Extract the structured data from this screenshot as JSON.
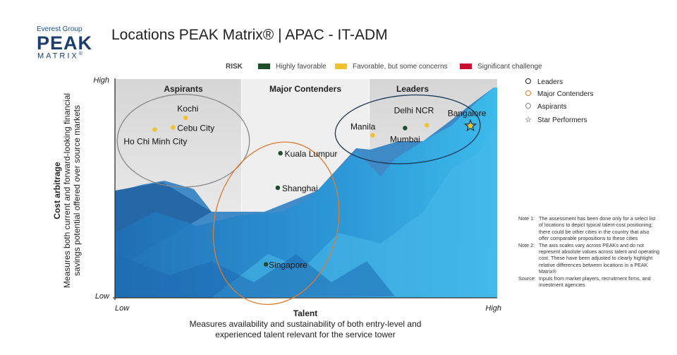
{
  "logo": {
    "group": "Everest Group",
    "peak": "PEAK",
    "matrix": "MATRIX",
    "reg": "®"
  },
  "title": "Locations PEAK Matrix® | APAC - IT-ADM",
  "risk": {
    "label": "RISK",
    "items": [
      {
        "label": "Highly favorable",
        "color": "#1e4d2b"
      },
      {
        "label": "Favorable, but some concerns",
        "color": "#f2c12e"
      },
      {
        "label": "Significant challenge",
        "color": "#c8102e"
      }
    ]
  },
  "legend": [
    {
      "label": "Leaders",
      "symbol": "circle",
      "color": "#222222"
    },
    {
      "label": "Major Contenders",
      "symbol": "circle",
      "color": "#e07a2e"
    },
    {
      "label": "Aspirants",
      "symbol": "circle",
      "color": "#888888"
    },
    {
      "label": "Star Performers",
      "symbol": "star",
      "color": "#222222"
    }
  ],
  "notes": [
    {
      "label": "Note 1:",
      "text": "The assessment has been done only for a select list of locations to depict typical talent-cost positioning; there could be other cities in the country that also offer comparable propositions to these cities"
    },
    {
      "label": "Note 2:",
      "text": "The axis scales vary across PEAKs and do not represent absolute values across talent and operating cost. These have been adjusted to clearly highlight relative differences between locations in a PEAK Matrix®"
    },
    {
      "label": "Source:",
      "text": "Inputs from market players, recruitment firms, and investment agencies"
    }
  ],
  "chart_data": {
    "type": "scatter",
    "title": "Locations PEAK Matrix® | APAC - IT-ADM",
    "xlabel": "Talent",
    "xlabel_sub": [
      "Measures availability and sustainability of both entry-level and",
      "experienced talent relevant for the service tower"
    ],
    "ylabel": "Cost arbitrage",
    "ylabel_sub": [
      "Measures both current and forward-looking financial",
      "savings potential offered over source markets"
    ],
    "x_ticks": [
      "Low",
      "High"
    ],
    "y_ticks": [
      "Low",
      "High"
    ],
    "xlim": [
      0,
      100
    ],
    "ylim": [
      0,
      100
    ],
    "zones": [
      "Aspirants",
      "Major Contenders",
      "Leaders"
    ],
    "points": [
      {
        "name": "Kochi",
        "x": 18.5,
        "y": 82.3,
        "risk": "Favorable, but some concerns",
        "category": "Aspirants"
      },
      {
        "name": "Cebu City",
        "x": 15.2,
        "y": 77.9,
        "risk": "Favorable, but some concerns",
        "category": "Aspirants"
      },
      {
        "name": "Ho Chi Minh City",
        "x": 10.4,
        "y": 76.9,
        "risk": "Favorable, but some concerns",
        "category": "Aspirants"
      },
      {
        "name": "Kuala Lumpur",
        "x": 43.3,
        "y": 66.1,
        "risk": "Highly favorable",
        "category": "Major Contenders"
      },
      {
        "name": "Shanghai",
        "x": 42.6,
        "y": 50.3,
        "risk": "Highly favorable",
        "category": "Major Contenders"
      },
      {
        "name": "Singapore",
        "x": 39.5,
        "y": 15.3,
        "risk": "Highly favorable",
        "category": "Major Contenders"
      },
      {
        "name": "Manila",
        "x": 67.4,
        "y": 74.3,
        "risk": "Favorable, but some concerns",
        "category": "Leaders"
      },
      {
        "name": "Delhi NCR",
        "x": 81.6,
        "y": 78.9,
        "risk": "Favorable, but some concerns",
        "category": "Leaders"
      },
      {
        "name": "Mumbai",
        "x": 75.9,
        "y": 77.6,
        "risk": "Highly favorable",
        "category": "Leaders"
      },
      {
        "name": "Bangalore",
        "x": 93.0,
        "y": 78.6,
        "risk": "Favorable, but some concerns",
        "category": "Leaders",
        "star": true
      }
    ],
    "ellipses": [
      {
        "category": "Aspirants",
        "cx": 17.9,
        "cy": 71.8,
        "rx": 17.3,
        "ry": 21.2,
        "color": "#888888"
      },
      {
        "category": "Major Contenders",
        "cx": 42.2,
        "cy": 34.1,
        "rx": 16.1,
        "ry": 37.6,
        "color": "#e07a2e",
        "rotate": 14
      },
      {
        "category": "Leaders",
        "cx": 76.6,
        "cy": 77.0,
        "rx": 19.0,
        "ry": 15.6,
        "color": "#1b3a57",
        "rotate": -4
      }
    ]
  }
}
